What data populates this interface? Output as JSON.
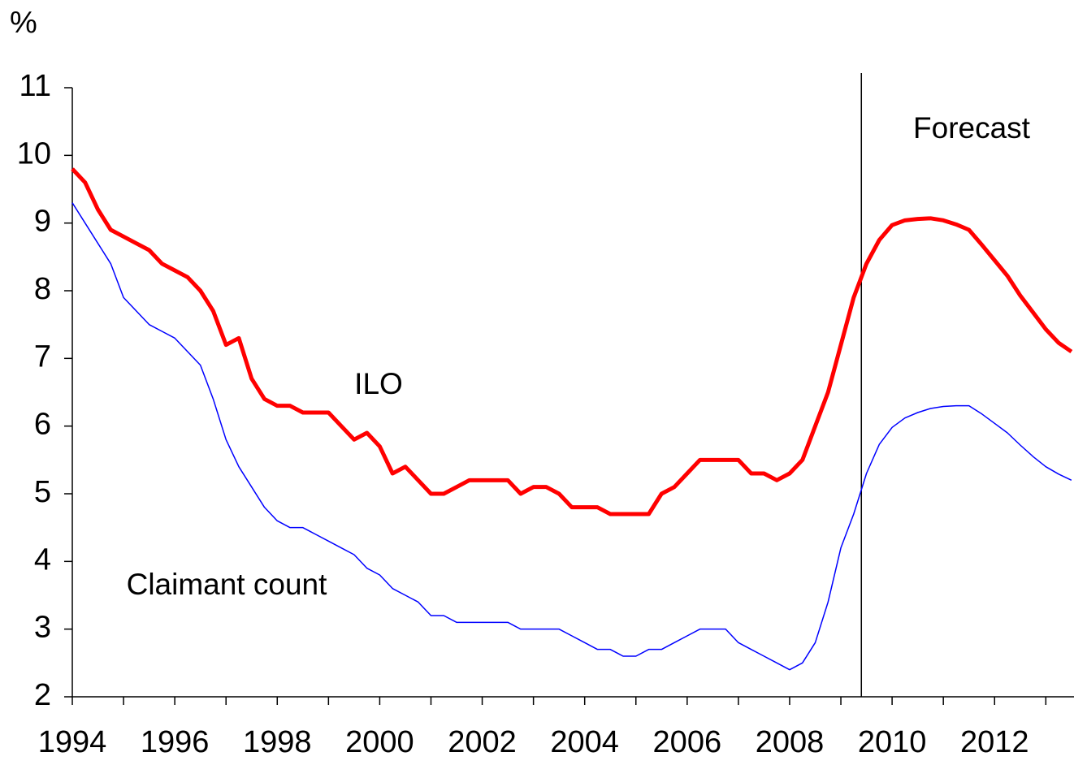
{
  "chart_data": {
    "type": "line",
    "y_unit": "%",
    "annotations": [
      "Forecast",
      "ILO",
      "Claimant count"
    ],
    "forecast_start": 2009.4,
    "xlim": [
      1994,
      2013.55
    ],
    "xticks": [
      1994,
      1996,
      1998,
      2000,
      2002,
      2004,
      2006,
      2008,
      2010,
      2012
    ],
    "xminor_ticks": [
      1995,
      1997,
      1999,
      2001,
      2003,
      2005,
      2007,
      2009,
      2011,
      2013
    ],
    "ylim": [
      2,
      11
    ],
    "yticks": [
      2,
      3,
      4,
      5,
      6,
      7,
      8,
      9,
      10,
      11
    ],
    "grid": false,
    "x": [
      1994,
      1994.25,
      1994.5,
      1994.75,
      1995,
      1995.25,
      1995.5,
      1995.75,
      1996,
      1996.25,
      1996.5,
      1996.75,
      1997,
      1997.25,
      1997.5,
      1997.75,
      1998,
      1998.25,
      1998.5,
      1998.75,
      1999,
      1999.25,
      1999.5,
      1999.75,
      2000,
      2000.25,
      2000.5,
      2000.75,
      2001,
      2001.25,
      2001.5,
      2001.75,
      2002,
      2002.25,
      2002.5,
      2002.75,
      2003,
      2003.25,
      2003.5,
      2003.75,
      2004,
      2004.25,
      2004.5,
      2004.75,
      2005,
      2005.25,
      2005.5,
      2005.75,
      2006,
      2006.25,
      2006.5,
      2006.75,
      2007,
      2007.25,
      2007.5,
      2007.75,
      2008,
      2008.25,
      2008.5,
      2008.75,
      2009,
      2009.25,
      2009.5,
      2009.75,
      2010,
      2010.25,
      2010.5,
      2010.75,
      2011,
      2011.25,
      2011.5,
      2011.75,
      2012,
      2012.25,
      2012.5,
      2012.75,
      2013,
      2013.25,
      2013.5
    ],
    "series": [
      {
        "name": "ILO",
        "color": "#ff0000",
        "width": 5,
        "values": [
          9.8,
          9.6,
          9.2,
          8.9,
          8.8,
          8.7,
          8.6,
          8.4,
          8.3,
          8.2,
          8.0,
          7.7,
          7.2,
          7.3,
          6.7,
          6.4,
          6.3,
          6.3,
          6.2,
          6.2,
          6.2,
          6.0,
          5.8,
          5.9,
          5.7,
          5.3,
          5.4,
          5.2,
          5.0,
          5.0,
          5.1,
          5.2,
          5.2,
          5.2,
          5.2,
          5.0,
          5.1,
          5.1,
          5.0,
          4.8,
          4.8,
          4.8,
          4.7,
          4.7,
          4.7,
          4.7,
          5.0,
          5.1,
          5.3,
          5.5,
          5.5,
          5.5,
          5.5,
          5.3,
          5.3,
          5.2,
          5.3,
          5.5,
          6.0,
          6.5,
          7.2,
          7.9,
          8.4,
          8.75,
          8.97,
          9.04,
          9.06,
          9.07,
          9.04,
          8.98,
          8.9,
          8.68,
          8.45,
          8.22,
          7.93,
          7.68,
          7.43,
          7.23,
          7.1
        ]
      },
      {
        "name": "Claimant count",
        "color": "#0000ff",
        "width": 1.5,
        "values": [
          9.3,
          9.0,
          8.7,
          8.4,
          7.9,
          7.7,
          7.5,
          7.4,
          7.3,
          7.1,
          6.9,
          6.4,
          5.8,
          5.4,
          5.1,
          4.8,
          4.6,
          4.5,
          4.5,
          4.4,
          4.3,
          4.2,
          4.1,
          3.9,
          3.8,
          3.6,
          3.5,
          3.4,
          3.2,
          3.2,
          3.1,
          3.1,
          3.1,
          3.1,
          3.1,
          3.0,
          3.0,
          3.0,
          3.0,
          2.9,
          2.8,
          2.7,
          2.7,
          2.6,
          2.6,
          2.7,
          2.7,
          2.8,
          2.9,
          3.0,
          3.0,
          3.0,
          2.8,
          2.7,
          2.6,
          2.5,
          2.4,
          2.5,
          2.8,
          3.4,
          4.2,
          4.7,
          5.3,
          5.73,
          5.98,
          6.12,
          6.2,
          6.26,
          6.29,
          6.3,
          6.3,
          6.18,
          6.04,
          5.9,
          5.72,
          5.55,
          5.4,
          5.29,
          5.2
        ]
      }
    ]
  }
}
